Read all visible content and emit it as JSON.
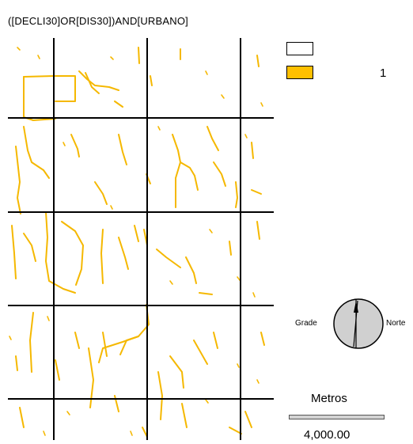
{
  "map": {
    "title": "([DECLI30]OR[DIS30])AND[URBANO]"
  },
  "legend": {
    "items": [
      {
        "label": "",
        "color": "#ffffff"
      },
      {
        "label": "1",
        "color": "#ffc000"
      }
    ]
  },
  "compass": {
    "left_label": "Grade",
    "right_label": "Norte"
  },
  "scale_bar": {
    "unit": "Metros",
    "value": "4,000.00"
  },
  "colors": {
    "feature": "#f5b800",
    "grid": "#000000",
    "compass_fill": "#d0d0d0"
  },
  "icons": {
    "compass": "north-arrow-compass-icon"
  }
}
